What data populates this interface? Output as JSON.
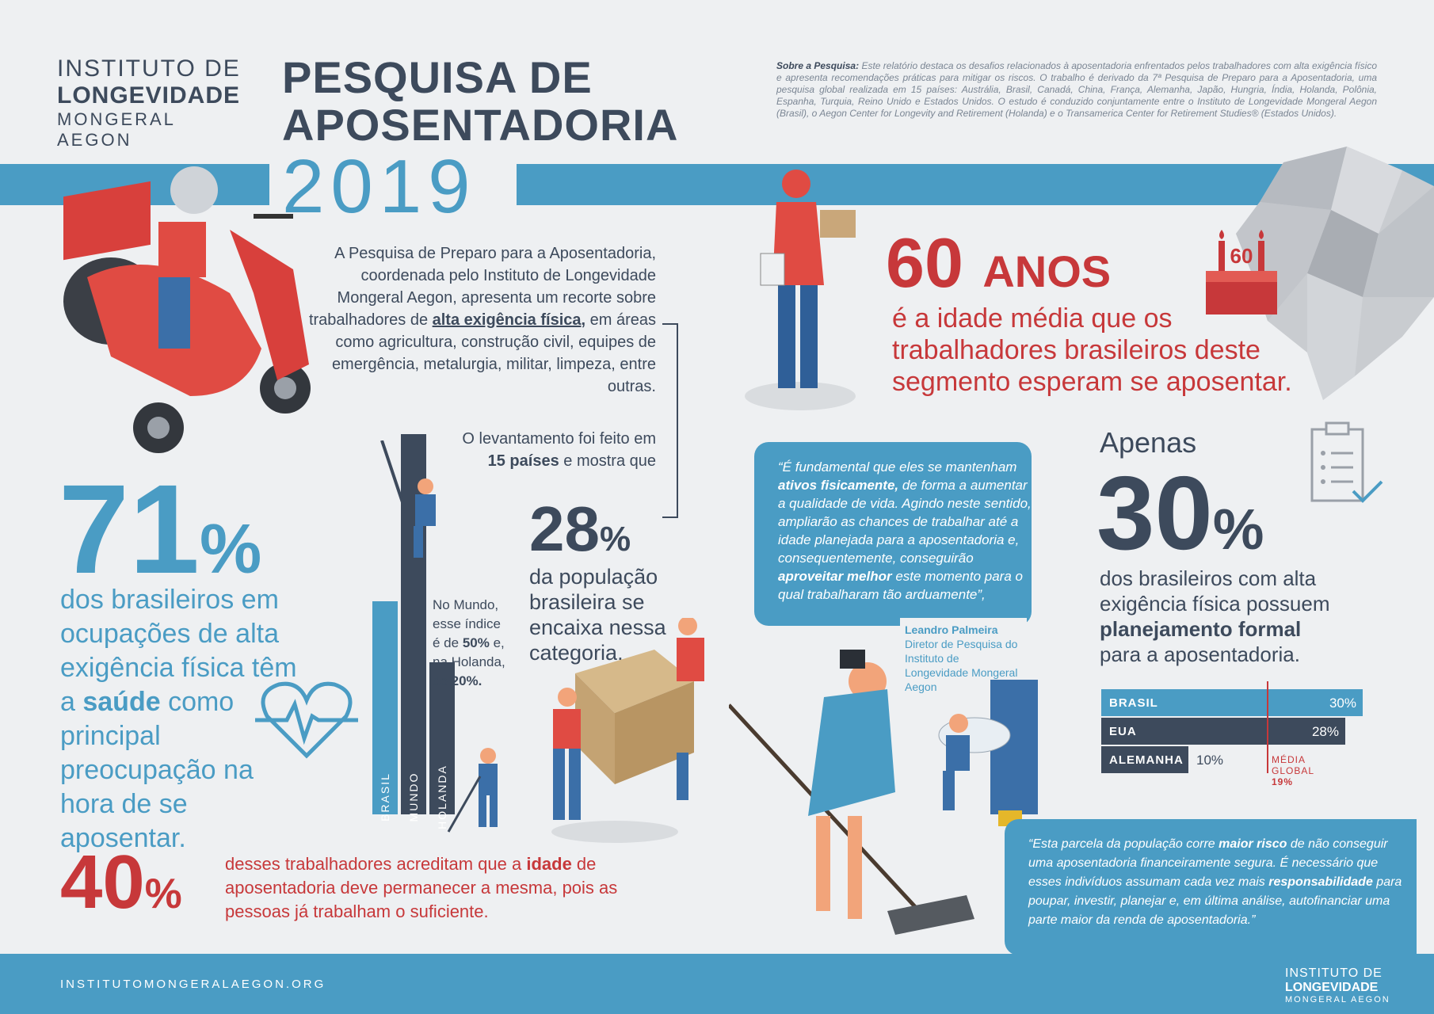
{
  "logo": {
    "line1": "INSTITUTO DE",
    "line2": "LONGEVIDADE",
    "line3": "MONGERAL AEGON"
  },
  "title": {
    "line1": "PESQUISA DE",
    "line2": "APOSENTADORIA",
    "year": "2019"
  },
  "about": {
    "label": "Sobre a Pesquisa:",
    "text": "Este relatório destaca os desafios relacionados à aposentadoria enfrentados pelos trabalhadores com alta exigência físico e apresenta recomendações práticas para mitigar os riscos. O trabalho é derivado da 7ª Pesquisa de Preparo para a Aposentadoria, uma pesquisa global realizada em 15 países: Austrália, Brasil, Canadá, China, França, Alemanha, Japão, Hungria, Índia, Holanda, Polônia, Espanha, Turquia, Reino Unido e Estados Unidos. O estudo é conduzido conjuntamente entre o Instituto de Longevidade Mongeral Aegon (Brasil), o Aegon Center for Longevity and Retirement (Holanda) e o Transamerica Center for Retirement Studies® (Estados Unidos)."
  },
  "intro": {
    "part1": "A Pesquisa de Preparo para a Aposentadoria, coordenada pelo Instituto de Longevidade Mongeral Aegon, apresenta um recorte sobre trabalhadores de ",
    "highlight": "alta exigência física,",
    "part2": " em áreas como agricultura, construção civil, equipes de emergência, metalurgia, militar, limpeza, entre outras.",
    "survey1": "O levantamento foi feito em",
    "survey_bold": "15 países",
    "survey2": " e mostra que"
  },
  "stat_60": {
    "number": "60",
    "unit": "ANOS",
    "text": "é a idade média que os trabalhadores brasileiros deste segmento esperam se aposentar.",
    "cake_label": "60"
  },
  "stat_71": {
    "number": "71",
    "unit": "%",
    "text1": "dos brasileiros em ocupações de alta exigência física têm a ",
    "bold": "saúde",
    "text2": " como principal preocupação na hora de se aposentar."
  },
  "stat_28": {
    "number": "28",
    "unit": "%",
    "text": "da população brasileira se encaixa nessa categoria."
  },
  "world_note": {
    "text1": "No Mundo, esse índice é de ",
    "b1": "50%",
    "text2": " e, na Holanda, de ",
    "b2": "20%."
  },
  "vbars": [
    {
      "label": "BRASIL",
      "value": 28,
      "color": "#4a9cc4"
    },
    {
      "label": "MUNDO",
      "value": 50,
      "color": "#3d4a5c"
    },
    {
      "label": "HOLANDA",
      "value": 20,
      "color": "#3d4a5c"
    }
  ],
  "stat_40": {
    "number": "40",
    "unit": "%",
    "text1": "desses trabalhadores acreditam que a ",
    "bold": "idade",
    "text2": " de aposentadoria deve permanecer a mesma, pois as pessoas já trabalham o suficiente."
  },
  "quote1": {
    "t1": "“É fundamental que eles se mantenham ",
    "b1": "ativos fisicamente,",
    "t2": " de forma a aumentar a qualidade de vida. Agindo neste sentido, ampliarão as chances de trabalhar até a idade planejada para a aposentadoria e, consequentemente, conseguirão ",
    "b2": "aproveitar melhor",
    "t3": " este momento para o qual trabalharam tão arduamente”,",
    "author": "Leandro Palmeira",
    "role": "Diretor de Pesquisa do Instituto de Longevidade Mongeral Aegon"
  },
  "stat_30": {
    "pre": "Apenas",
    "number": "30",
    "unit": "%",
    "text1": "dos brasileiros com alta exigência física possuem ",
    "bold": "planejamento formal",
    "text2": " para a aposentadoria."
  },
  "hbars": [
    {
      "label": "BRASIL",
      "value": 30,
      "display": "30%",
      "color": "#4a9cc4"
    },
    {
      "label": "EUA",
      "value": 28,
      "display": "28%",
      "color": "#3d4a5c"
    },
    {
      "label": "ALEMANHA",
      "value": 10,
      "display": "10%",
      "color": "#3d4a5c"
    }
  ],
  "global_avg": {
    "label1": "MÉDIA",
    "label2": "GLOBAL",
    "value": "19%",
    "numeric": 19
  },
  "quote2": {
    "t1": "“Esta parcela da população corre ",
    "b1": "maior risco",
    "t2": " de não conseguir uma aposentadoria financeiramente segura. É necessário que esses indivíduos assumam cada vez mais ",
    "b2": "responsabilidade",
    "t3": " para poupar, investir, planejar e, em última análise, autofinanciar uma parte maior da renda de aposentadoria.”"
  },
  "footer": {
    "url": "INSTITUTOMONGERALAEGON.ORG",
    "logo1": "INSTITUTO DE",
    "logo2": "LONGEVIDADE",
    "logo3": "MONGERAL AEGON"
  },
  "colors": {
    "blue": "#4a9cc4",
    "dark": "#3d4a5c",
    "red": "#c7383a",
    "bg": "#eef0f2"
  }
}
